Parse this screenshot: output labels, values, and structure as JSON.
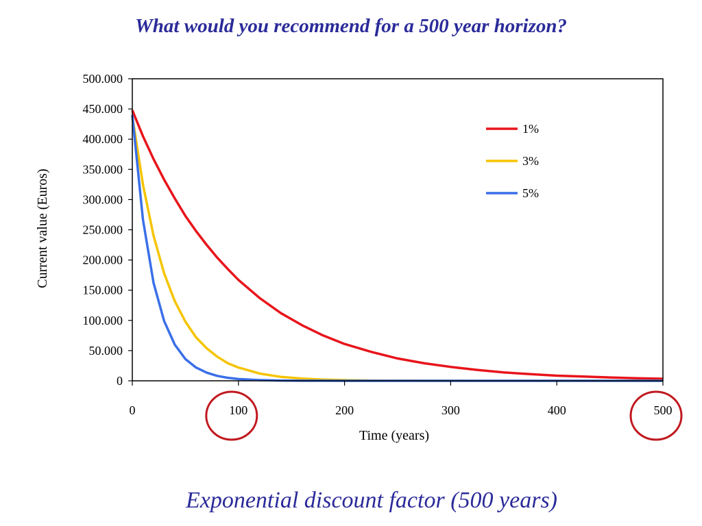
{
  "slide": {
    "title": "What would you recommend for a 500 year horizon?",
    "footer": "Exponential discount factor (500 years)"
  },
  "colors": {
    "title": "#2b2b9a",
    "circle": "#c0181e"
  },
  "highlighted_ticks": [
    100,
    500
  ],
  "chart_data": {
    "type": "line",
    "title": "",
    "xlabel": "Time (years)",
    "ylabel": "Current value (Euros)",
    "xlim": [
      0,
      500
    ],
    "ylim": [
      0,
      500000
    ],
    "x_ticks": [
      0,
      100,
      200,
      300,
      400,
      500
    ],
    "y_ticks": [
      0,
      50000,
      100000,
      150000,
      200000,
      250000,
      300000,
      350000,
      400000,
      450000,
      500000
    ],
    "x_tick_labels": [
      "0",
      "100",
      "200",
      "300",
      "400",
      "500"
    ],
    "y_tick_labels": [
      "0",
      "50.000",
      "100.000",
      "150.000",
      "200.000",
      "250.000",
      "300.000",
      "350.000",
      "400.000",
      "450.000",
      "500.000"
    ],
    "grid": false,
    "legend_position": "top-right",
    "x": [
      0,
      10,
      20,
      30,
      40,
      50,
      60,
      70,
      80,
      90,
      100,
      120,
      140,
      160,
      180,
      200,
      225,
      250,
      275,
      300,
      325,
      350,
      375,
      400,
      425,
      450,
      475,
      500
    ],
    "series": [
      {
        "name": "1%",
        "color": "#e8141b",
        "values": [
          448000,
          405000,
          367000,
          333000,
          302000,
          273000,
          248000,
          225000,
          204000,
          185000,
          167000,
          137000,
          112000,
          92000,
          75000,
          61000,
          48000,
          37000,
          29000,
          23000,
          18000,
          14000,
          11000,
          8500,
          7000,
          5500,
          4300,
          3400
        ]
      },
      {
        "name": "3%",
        "color": "#f5c400",
        "values": [
          438000,
          325000,
          240000,
          178000,
          132000,
          98000,
          72000,
          54000,
          40000,
          29000,
          22000,
          12000,
          6500,
          3600,
          2000,
          1100,
          500,
          250,
          100,
          60,
          30,
          20,
          10,
          5,
          3,
          2,
          1,
          0
        ]
      },
      {
        "name": "5%",
        "color": "#3a6fe8",
        "values": [
          440000,
          267000,
          162000,
          99000,
          60000,
          36000,
          22000,
          13500,
          8200,
          5000,
          3000,
          1100,
          400,
          150,
          60,
          20,
          10,
          5,
          2,
          1,
          0,
          0,
          0,
          0,
          0,
          0,
          0,
          0
        ]
      }
    ]
  }
}
